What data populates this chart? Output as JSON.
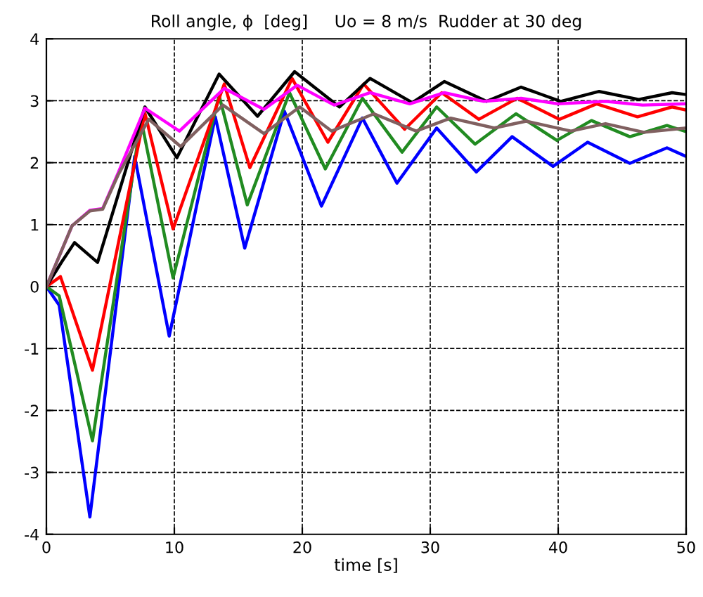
{
  "chart_data": {
    "type": "line",
    "title": "Roll angle, ϕ  [deg]     Uo = 8 m/s  Rudder at 30 deg",
    "xlabel": "time [s]",
    "xlim": [
      0,
      50
    ],
    "ylim": [
      -4,
      4
    ],
    "xticks": [
      0,
      10,
      20,
      30,
      40,
      50
    ],
    "yticks": [
      -4,
      -3,
      -2,
      -1,
      0,
      1,
      2,
      3,
      4
    ],
    "grid": true,
    "marker": "none",
    "series": [
      {
        "color": "#0000ff",
        "x": [
          0,
          1,
          3.4,
          6.9,
          9.6,
          13.2,
          15.5,
          18.6,
          21.5,
          24.7,
          27.4,
          30.5,
          33.6,
          36.4,
          39.6,
          42.3,
          45.6,
          48.5,
          50
        ],
        "values": [
          0,
          -0.3,
          -3.72,
          2.1,
          -0.8,
          2.74,
          0.62,
          2.83,
          1.3,
          2.72,
          1.67,
          2.56,
          1.85,
          2.42,
          1.94,
          2.33,
          1.99,
          2.24,
          2.1
        ]
      },
      {
        "color": "#218b21",
        "x": [
          0,
          1,
          3.6,
          7.4,
          9.9,
          13.5,
          15.7,
          19,
          21.8,
          24.7,
          27.8,
          30.5,
          33.5,
          36.7,
          39.9,
          42.6,
          45.6,
          48.5,
          50
        ],
        "values": [
          0,
          -0.15,
          -2.49,
          2.7,
          0.14,
          3.08,
          1.32,
          3.13,
          1.9,
          3.04,
          2.17,
          2.9,
          2.3,
          2.79,
          2.36,
          2.68,
          2.42,
          2.6,
          2.5
        ]
      },
      {
        "color": "#ff0000",
        "x": [
          0,
          1.1,
          3.6,
          7.7,
          9.9,
          13.9,
          15.9,
          19.2,
          22,
          24.8,
          28,
          30.9,
          33.8,
          36.8,
          40.1,
          43,
          46.2,
          48.9,
          50
        ],
        "values": [
          0,
          0.16,
          -1.35,
          2.8,
          0.93,
          3.27,
          1.92,
          3.36,
          2.33,
          3.27,
          2.54,
          3.13,
          2.7,
          3.04,
          2.7,
          2.95,
          2.74,
          2.9,
          2.85
        ]
      },
      {
        "color": "#000000",
        "x": [
          0,
          1.2,
          2.2,
          4,
          7.7,
          10.2,
          13.5,
          16.5,
          19.4,
          22.9,
          25.3,
          28.6,
          31.1,
          34.4,
          37.1,
          40.2,
          43.2,
          46.3,
          48.9,
          50
        ],
        "values": [
          0,
          0.4,
          0.71,
          0.39,
          2.9,
          2.08,
          3.43,
          2.75,
          3.47,
          2.9,
          3.36,
          2.97,
          3.31,
          2.99,
          3.22,
          2.99,
          3.15,
          3.02,
          3.13,
          3.1
        ]
      },
      {
        "color": "#ff00ff",
        "x": [
          0,
          2,
          3.4,
          4.4,
          5.6,
          7.7,
          10.4,
          13.9,
          17,
          19.6,
          22.5,
          25.3,
          28.4,
          31.1,
          34.2,
          37.1,
          40,
          43.7,
          46.6,
          50
        ],
        "values": [
          0,
          0.98,
          1.23,
          1.26,
          1.83,
          2.88,
          2.51,
          3.2,
          2.86,
          3.25,
          2.93,
          3.13,
          2.95,
          3.13,
          2.99,
          3.04,
          2.95,
          2.99,
          2.93,
          2.95
        ]
      },
      {
        "color": "#806060",
        "x": [
          0,
          2,
          3.4,
          4.4,
          5.6,
          8,
          10.5,
          13.8,
          17,
          19.8,
          22.3,
          25.6,
          28.9,
          31.6,
          35,
          37.5,
          41,
          43.7,
          46.7,
          50
        ],
        "values": [
          0,
          0.98,
          1.22,
          1.25,
          1.8,
          2.7,
          2.26,
          2.93,
          2.47,
          2.9,
          2.51,
          2.79,
          2.51,
          2.72,
          2.56,
          2.67,
          2.51,
          2.63,
          2.49,
          2.56
        ]
      }
    ]
  }
}
